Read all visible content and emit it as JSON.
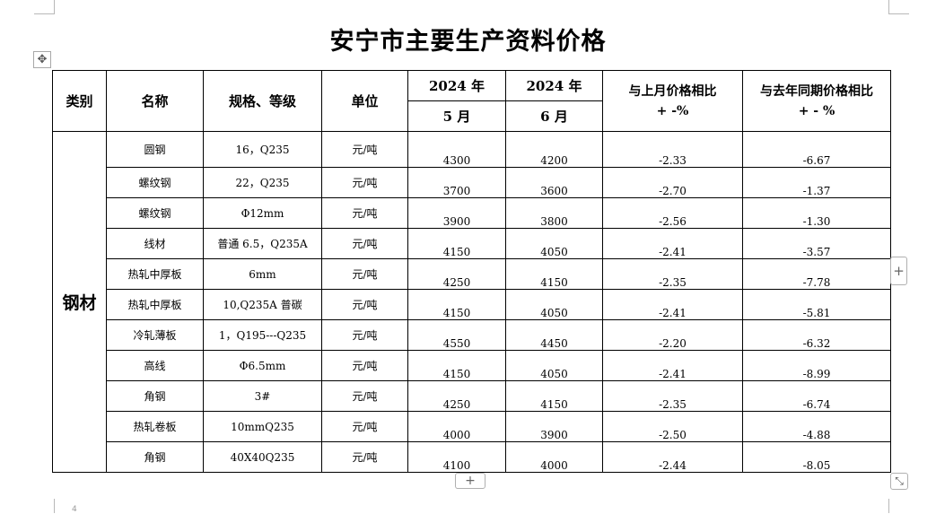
{
  "title": "安宁市主要生产资料价格",
  "page_number": "4",
  "headers": {
    "category": "类别",
    "name": "名称",
    "spec": "规格、等级",
    "unit": "单位",
    "year1": "2024 年",
    "month1": "5 月",
    "year2": "2024 年",
    "month2": "6 月",
    "mom_line1": "与上月价格相比",
    "mom_line2": "+ -%",
    "yoy_line1": "与去年同期价格相比",
    "yoy_line2": "+ - %"
  },
  "category": "钢材",
  "rows": [
    {
      "name": "圆钢",
      "spec": "16，Q235",
      "unit": "元/吨",
      "may": "4300",
      "jun": "4200",
      "mom": "-2.33",
      "yoy": "-6.67"
    },
    {
      "name": "螺纹钢",
      "spec": "22，Q235",
      "unit": "元/吨",
      "may": "3700",
      "jun": "3600",
      "mom": "-2.70",
      "yoy": "-1.37"
    },
    {
      "name": "螺纹钢",
      "spec": "Φ12mm",
      "unit": "元/吨",
      "may": "3900",
      "jun": "3800",
      "mom": "-2.56",
      "yoy": "-1.30"
    },
    {
      "name": "线材",
      "spec": "普通 6.5，Q235A",
      "unit": "元/吨",
      "may": "4150",
      "jun": "4050",
      "mom": "-2.41",
      "yoy": "-3.57"
    },
    {
      "name": "热轧中厚板",
      "spec": "6mm",
      "unit": "元/吨",
      "may": "4250",
      "jun": "4150",
      "mom": "-2.35",
      "yoy": "-7.78"
    },
    {
      "name": "热轧中厚板",
      "spec": "10,Q235A 普碳",
      "unit": "元/吨",
      "may": "4150",
      "jun": "4050",
      "mom": "-2.41",
      "yoy": "-5.81"
    },
    {
      "name": "冷轧薄板",
      "spec": "1，Q195---Q235",
      "unit": "元/吨",
      "may": "4550",
      "jun": "4450",
      "mom": "-2.20",
      "yoy": "-6.32"
    },
    {
      "name": "高线",
      "spec": "Φ6.5mm",
      "unit": "元/吨",
      "may": "4150",
      "jun": "4050",
      "mom": "-2.41",
      "yoy": "-8.99"
    },
    {
      "name": "角钢",
      "spec": "3#",
      "unit": "元/吨",
      "may": "4250",
      "jun": "4150",
      "mom": "-2.35",
      "yoy": "-6.74"
    },
    {
      "name": "热轧卷板",
      "spec": "10mmQ235",
      "unit": "元/吨",
      "may": "4000",
      "jun": "3900",
      "mom": "-2.50",
      "yoy": "-4.88"
    },
    {
      "name": "角钢",
      "spec": "40X40Q235",
      "unit": "元/吨",
      "may": "4100",
      "jun": "4000",
      "mom": "-2.44",
      "yoy": "-8.05"
    }
  ],
  "icons": {
    "move": "move-arrows-icon",
    "add_column": "plus-icon",
    "add_row": "plus-icon",
    "resize": "resize-diagonal-icon"
  }
}
